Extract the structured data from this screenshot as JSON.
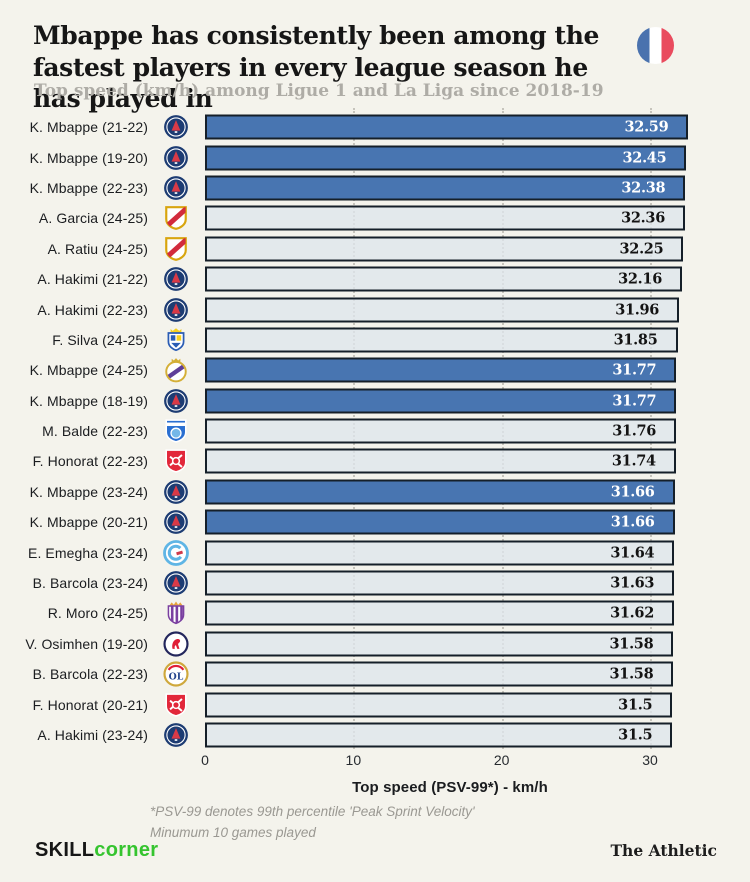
{
  "header": {
    "title": "Mbappe has consistently been among the fastest players in every league season he has played in",
    "subtitle": "Top speed (km/h) among Ligue 1 and La Liga since 2018-19",
    "flag_icon": "france-flag",
    "flag_colors": {
      "blue": "#4a72ae",
      "white": "#ffffff",
      "red": "#e94b5e"
    }
  },
  "chart_data": {
    "type": "bar",
    "orientation": "horizontal",
    "xlabel": "Top speed (PSV-99*) - km/h",
    "xlim": [
      0,
      33
    ],
    "xticks": [
      0,
      10,
      20,
      30
    ],
    "grid": "dotted-vertical",
    "legend": "none",
    "highlight_color": "#4875b1",
    "base_bar_color": "#e3e8ed",
    "bar_border_color": "#151f29",
    "rows": [
      {
        "label": "K. Mbappe (21-22)",
        "team": "psg",
        "value": 32.59,
        "display": "32.59",
        "highlight": true
      },
      {
        "label": "K. Mbappe (19-20)",
        "team": "psg",
        "value": 32.45,
        "display": "32.45",
        "highlight": true
      },
      {
        "label": "K. Mbappe (22-23)",
        "team": "psg",
        "value": 32.38,
        "display": "32.38",
        "highlight": true
      },
      {
        "label": "A. Garcia (24-25)",
        "team": "rayo",
        "value": 32.36,
        "display": "32.36",
        "highlight": false
      },
      {
        "label": "A. Ratiu (24-25)",
        "team": "rayo",
        "value": 32.25,
        "display": "32.25",
        "highlight": false
      },
      {
        "label": "A. Hakimi (21-22)",
        "team": "psg",
        "value": 32.16,
        "display": "32.16",
        "highlight": false
      },
      {
        "label": "A. Hakimi (22-23)",
        "team": "psg",
        "value": 31.96,
        "display": "31.96",
        "highlight": false
      },
      {
        "label": "F. Silva (24-25)",
        "team": "laspalmas",
        "value": 31.85,
        "display": "31.85",
        "highlight": false
      },
      {
        "label": "K. Mbappe (24-25)",
        "team": "realmadrid",
        "value": 31.77,
        "display": "31.77",
        "highlight": true
      },
      {
        "label": "K. Mbappe (18-19)",
        "team": "psg",
        "value": 31.77,
        "display": "31.77",
        "highlight": true
      },
      {
        "label": "M. Balde (22-23)",
        "team": "troyes",
        "value": 31.76,
        "display": "31.76",
        "highlight": false
      },
      {
        "label": "F. Honorat (22-23)",
        "team": "brest",
        "value": 31.74,
        "display": "31.74",
        "highlight": false
      },
      {
        "label": "K. Mbappe (23-24)",
        "team": "psg",
        "value": 31.66,
        "display": "31.66",
        "highlight": true
      },
      {
        "label": "K. Mbappe (20-21)",
        "team": "psg",
        "value": 31.66,
        "display": "31.66",
        "highlight": true
      },
      {
        "label": "E. Emegha (23-24)",
        "team": "strasbourg",
        "value": 31.64,
        "display": "31.64",
        "highlight": false
      },
      {
        "label": "B. Barcola (23-24)",
        "team": "psg",
        "value": 31.63,
        "display": "31.63",
        "highlight": false
      },
      {
        "label": "R. Moro (24-25)",
        "team": "valladolid",
        "value": 31.62,
        "display": "31.62",
        "highlight": false
      },
      {
        "label": "V. Osimhen (19-20)",
        "team": "lille",
        "value": 31.58,
        "display": "31.58",
        "highlight": false
      },
      {
        "label": "B. Barcola (22-23)",
        "team": "lyon",
        "value": 31.58,
        "display": "31.58",
        "highlight": false
      },
      {
        "label": "F. Honorat (20-21)",
        "team": "brest",
        "value": 31.5,
        "display": "31.5",
        "highlight": false
      },
      {
        "label": "A. Hakimi (23-24)",
        "team": "psg",
        "value": 31.5,
        "display": "31.5",
        "highlight": false
      }
    ]
  },
  "axis_note": {
    "line1": "*PSV-99 denotes 99th percentile 'Peak Sprint Velocity'",
    "line2": "Minumum 10 games played"
  },
  "footer": {
    "brand_black": "SKILL",
    "brand_green": "corner",
    "brand_green_color": "#35c42f",
    "credit": "The Athletic"
  },
  "teams": {
    "psg": {
      "name": "Paris Saint-Germain",
      "colors": [
        "#1d3c73",
        "#ffffff",
        "#d93a47"
      ]
    },
    "rayo": {
      "name": "Rayo Vallecano",
      "colors": [
        "#ffffff",
        "#d8a50e",
        "#d22b3c"
      ]
    },
    "laspalmas": {
      "name": "UD Las Palmas",
      "colors": [
        "#f6d021",
        "#2a5cb4",
        "#ffffff"
      ]
    },
    "realmadrid": {
      "name": "Real Madrid",
      "colors": [
        "#ffffff",
        "#d4af37",
        "#5f3f99"
      ]
    },
    "troyes": {
      "name": "ESTAC Troyes",
      "colors": [
        "#2a6fd1",
        "#ffffff",
        "#74b7e8"
      ]
    },
    "brest": {
      "name": "Stade Brestois 29",
      "colors": [
        "#e2273a",
        "#ffffff",
        "#b01224"
      ]
    },
    "strasbourg": {
      "name": "RC Strasbourg",
      "colors": [
        "#5fb5e5",
        "#ffffff",
        "#d03a4a"
      ]
    },
    "valladolid": {
      "name": "Real Valladolid",
      "colors": [
        "#7a3fa0",
        "#ffffff",
        "#e8a33d"
      ]
    },
    "lille": {
      "name": "LOSC Lille",
      "colors": [
        "#ffffff",
        "#23265c",
        "#e01e37"
      ]
    },
    "lyon": {
      "name": "Olympique Lyonnais",
      "colors": [
        "#ffffff",
        "#cfa83c",
        "#e01e37",
        "#24448c"
      ]
    }
  }
}
